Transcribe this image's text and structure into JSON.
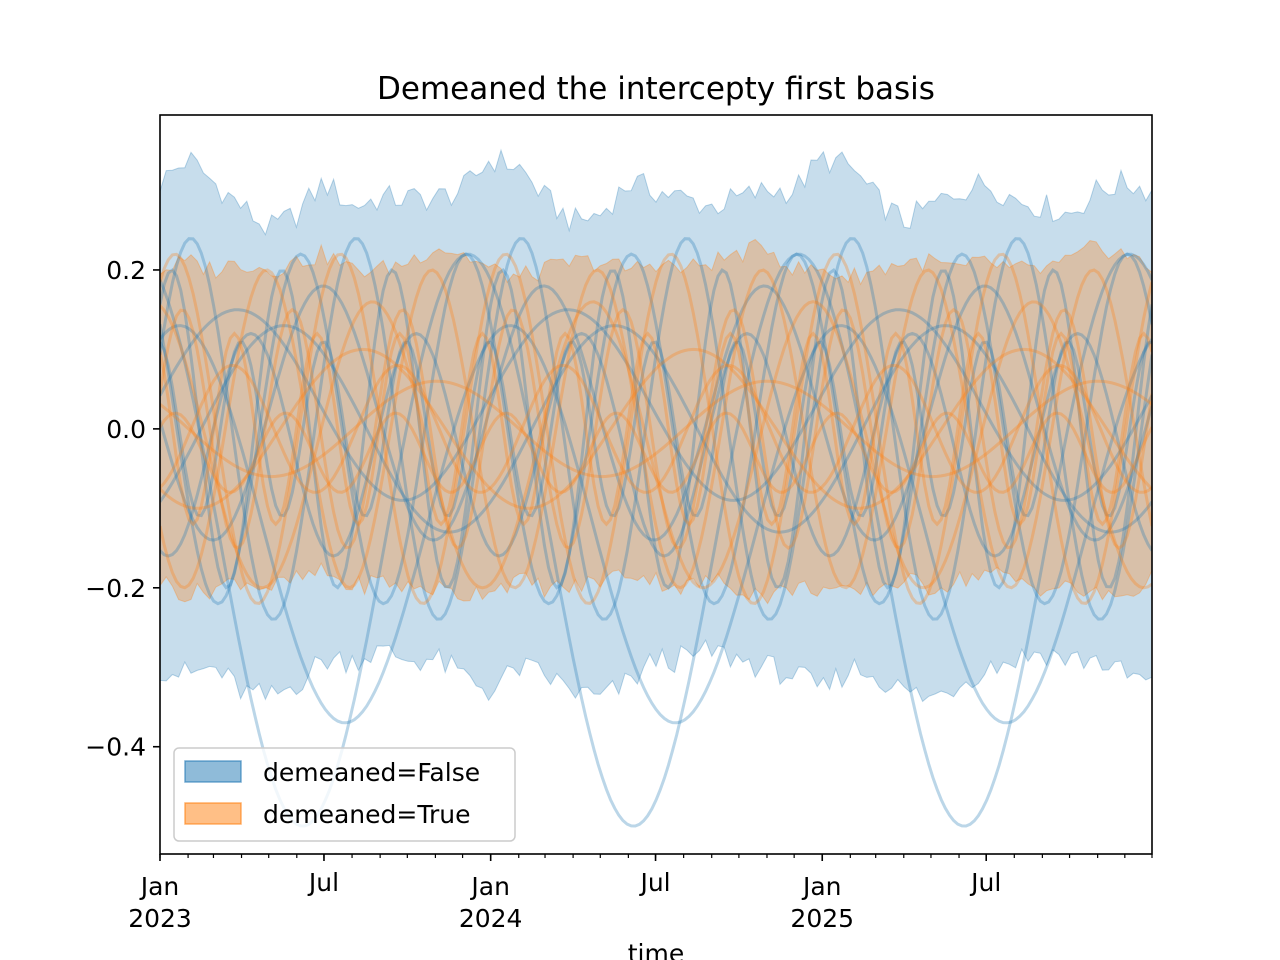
{
  "chart_data": {
    "type": "area",
    "title": "Demeaned the intercepty first basis",
    "xlabel": "time",
    "ylabel": "",
    "x_range": [
      "2023-01-01",
      "2025-12-31"
    ],
    "ylim": [
      -0.535,
      0.395
    ],
    "yticks": [
      -0.4,
      -0.2,
      0.0,
      0.2
    ],
    "ytick_labels": [
      "−0.4",
      "−0.2",
      "0.0",
      "0.2"
    ],
    "xticks": [
      {
        "date": "2023-01-01",
        "line1": "Jan",
        "line2": "2023"
      },
      {
        "date": "2023-07-01",
        "line1": "Jul",
        "line2": ""
      },
      {
        "date": "2024-01-01",
        "line1": "Jan",
        "line2": "2024"
      },
      {
        "date": "2024-07-01",
        "line1": "Jul",
        "line2": ""
      },
      {
        "date": "2025-01-01",
        "line1": "Jan",
        "line2": "2025"
      },
      {
        "date": "2025-07-01",
        "line1": "Jul",
        "line2": ""
      }
    ],
    "grid": false,
    "legend_position": "lower-left",
    "colors": {
      "false_series": "#1f77b4",
      "true_series": "#ff7f0e"
    },
    "series": [
      {
        "name": "demeaned=False",
        "band_upper": {
          "dates": [
            "2023-01-01",
            "2023-02-01",
            "2023-03-01",
            "2023-04-01",
            "2023-05-01",
            "2023-06-01",
            "2023-07-01",
            "2023-08-01",
            "2023-09-01",
            "2023-10-01",
            "2023-11-01",
            "2023-12-01",
            "2024-01-01",
            "2024-02-01",
            "2024-03-01",
            "2024-04-01",
            "2024-05-01",
            "2024-06-01",
            "2024-07-01",
            "2024-08-01",
            "2024-09-01",
            "2024-10-01",
            "2024-11-01",
            "2024-12-01",
            "2025-01-01",
            "2025-02-01",
            "2025-03-01",
            "2025-04-01",
            "2025-05-01",
            "2025-06-01",
            "2025-07-01",
            "2025-08-01",
            "2025-09-01",
            "2025-10-01",
            "2025-11-01",
            "2025-12-01",
            "2025-12-31"
          ],
          "values": [
            0.31,
            0.34,
            0.31,
            0.28,
            0.25,
            0.27,
            0.31,
            0.28,
            0.29,
            0.29,
            0.29,
            0.3,
            0.34,
            0.33,
            0.29,
            0.26,
            0.27,
            0.31,
            0.3,
            0.29,
            0.28,
            0.29,
            0.3,
            0.3,
            0.34,
            0.33,
            0.29,
            0.26,
            0.28,
            0.3,
            0.31,
            0.29,
            0.28,
            0.27,
            0.3,
            0.31,
            0.3
          ]
        },
        "band_lower": {
          "dates": [
            "2023-01-01",
            "2023-02-01",
            "2023-03-01",
            "2023-04-01",
            "2023-05-01",
            "2023-06-01",
            "2023-07-01",
            "2023-08-01",
            "2023-09-01",
            "2023-10-01",
            "2023-11-01",
            "2023-12-01",
            "2024-01-01",
            "2024-02-01",
            "2024-03-01",
            "2024-04-01",
            "2024-05-01",
            "2024-06-01",
            "2024-07-01",
            "2024-08-01",
            "2024-09-01",
            "2024-10-01",
            "2024-11-01",
            "2024-12-01",
            "2025-01-01",
            "2025-02-01",
            "2025-03-01",
            "2025-04-01",
            "2025-05-01",
            "2025-06-01",
            "2025-07-01",
            "2025-08-01",
            "2025-09-01",
            "2025-10-01",
            "2025-11-01",
            "2025-12-01",
            "2025-12-31"
          ],
          "values": [
            -0.3,
            -0.31,
            -0.3,
            -0.33,
            -0.34,
            -0.32,
            -0.29,
            -0.29,
            -0.28,
            -0.29,
            -0.29,
            -0.31,
            -0.33,
            -0.3,
            -0.31,
            -0.33,
            -0.34,
            -0.32,
            -0.29,
            -0.29,
            -0.28,
            -0.29,
            -0.3,
            -0.31,
            -0.33,
            -0.3,
            -0.31,
            -0.33,
            -0.34,
            -0.32,
            -0.3,
            -0.29,
            -0.28,
            -0.29,
            -0.29,
            -0.31,
            -0.32
          ]
        }
      },
      {
        "name": "demeaned=True",
        "band_upper": {
          "dates": [
            "2023-01-01",
            "2023-02-01",
            "2023-03-01",
            "2023-04-01",
            "2023-05-01",
            "2023-06-01",
            "2023-07-01",
            "2023-08-01",
            "2023-09-01",
            "2023-10-01",
            "2023-11-01",
            "2023-12-01",
            "2024-01-01",
            "2024-02-01",
            "2024-03-01",
            "2024-04-01",
            "2024-05-01",
            "2024-06-01",
            "2024-07-01",
            "2024-08-01",
            "2024-09-01",
            "2024-10-01",
            "2024-11-01",
            "2024-12-01",
            "2025-01-01",
            "2025-02-01",
            "2025-03-01",
            "2025-04-01",
            "2025-05-01",
            "2025-06-01",
            "2025-07-01",
            "2025-08-01",
            "2025-09-01",
            "2025-10-01",
            "2025-11-01",
            "2025-12-01",
            "2025-12-31"
          ],
          "values": [
            0.2,
            0.21,
            0.2,
            0.21,
            0.2,
            0.21,
            0.22,
            0.2,
            0.2,
            0.21,
            0.23,
            0.22,
            0.2,
            0.19,
            0.2,
            0.21,
            0.21,
            0.2,
            0.21,
            0.2,
            0.21,
            0.22,
            0.23,
            0.2,
            0.2,
            0.19,
            0.2,
            0.21,
            0.21,
            0.2,
            0.21,
            0.2,
            0.2,
            0.21,
            0.23,
            0.22,
            0.2
          ]
        },
        "band_lower": {
          "dates": [
            "2023-01-01",
            "2023-02-01",
            "2023-03-01",
            "2023-04-01",
            "2023-05-01",
            "2023-06-01",
            "2023-07-01",
            "2023-08-01",
            "2023-09-01",
            "2023-10-01",
            "2023-11-01",
            "2023-12-01",
            "2024-01-01",
            "2024-02-01",
            "2024-03-01",
            "2024-04-01",
            "2024-05-01",
            "2024-06-01",
            "2024-07-01",
            "2024-08-01",
            "2024-09-01",
            "2024-10-01",
            "2024-11-01",
            "2024-12-01",
            "2025-01-01",
            "2025-02-01",
            "2025-03-01",
            "2025-04-01",
            "2025-05-01",
            "2025-06-01",
            "2025-07-01",
            "2025-08-01",
            "2025-09-01",
            "2025-10-01",
            "2025-11-01",
            "2025-12-01",
            "2025-12-31"
          ],
          "values": [
            -0.19,
            -0.21,
            -0.2,
            -0.19,
            -0.2,
            -0.19,
            -0.18,
            -0.2,
            -0.19,
            -0.2,
            -0.2,
            -0.21,
            -0.2,
            -0.19,
            -0.2,
            -0.2,
            -0.19,
            -0.18,
            -0.19,
            -0.2,
            -0.19,
            -0.2,
            -0.21,
            -0.2,
            -0.2,
            -0.21,
            -0.2,
            -0.19,
            -0.2,
            -0.19,
            -0.18,
            -0.19,
            -0.2,
            -0.2,
            -0.21,
            -0.21,
            -0.19
          ]
        }
      }
    ],
    "sample_lines": [
      {
        "series": "demeaned=False",
        "amplitude": 0.24,
        "period_months": 6,
        "offset": 0.0,
        "phase": 0.4
      },
      {
        "series": "demeaned=False",
        "amplitude": 0.22,
        "period_months": 6,
        "offset": 0.0,
        "phase": 2.5
      },
      {
        "series": "demeaned=False",
        "amplitude": 0.25,
        "period_months": 12,
        "offset": -0.12,
        "phase": 1.2
      },
      {
        "series": "demeaned=False",
        "amplitude": 0.2,
        "period_months": 4,
        "offset": 0.0,
        "phase": 0.9
      },
      {
        "series": "demeaned=False",
        "amplitude": 0.16,
        "period_months": 8,
        "offset": 0.02,
        "phase": 3.2
      },
      {
        "series": "demeaned=False",
        "amplitude": 0.14,
        "period_months": 6,
        "offset": -0.02,
        "phase": 4.4
      },
      {
        "series": "demeaned=False",
        "amplitude": 0.13,
        "period_months": 12,
        "offset": 0.0,
        "phase": 5.5
      },
      {
        "series": "demeaned=False",
        "amplitude": 0.11,
        "period_months": 3,
        "offset": 0.0,
        "phase": 1.7
      },
      {
        "series": "demeaned=False",
        "amplitude": 0.36,
        "period_months": 12,
        "offset": -0.14,
        "phase": 2.0
      },
      {
        "series": "demeaned=False",
        "amplitude": 0.12,
        "period_months": 12,
        "offset": 0.03,
        "phase": 0.1
      },
      {
        "series": "demeaned=True",
        "amplitude": 0.22,
        "period_months": 6,
        "offset": 0.0,
        "phase": 1.0
      },
      {
        "series": "demeaned=True",
        "amplitude": 0.2,
        "period_months": 6,
        "offset": 0.0,
        "phase": 3.8
      },
      {
        "series": "demeaned=True",
        "amplitude": 0.15,
        "period_months": 4,
        "offset": 0.0,
        "phase": 0.3
      },
      {
        "series": "demeaned=True",
        "amplitude": 0.1,
        "period_months": 12,
        "offset": 0.0,
        "phase": 4.0
      },
      {
        "series": "demeaned=True",
        "amplitude": 0.08,
        "period_months": 6,
        "offset": 0.0,
        "phase": 5.1
      },
      {
        "series": "demeaned=True",
        "amplitude": 0.06,
        "period_months": 12,
        "offset": 0.0,
        "phase": 2.6
      },
      {
        "series": "demeaned=True",
        "amplitude": 0.18,
        "period_months": 8,
        "offset": -0.02,
        "phase": 1.8
      },
      {
        "series": "demeaned=True",
        "amplitude": 0.12,
        "period_months": 3,
        "offset": 0.0,
        "phase": 2.2
      },
      {
        "series": "demeaned=True",
        "amplitude": 0.05,
        "period_months": 4,
        "offset": -0.03,
        "phase": 0.7
      }
    ]
  },
  "legend": {
    "items": [
      {
        "label": "demeaned=False",
        "color": "#1f77b4"
      },
      {
        "label": "demeaned=True",
        "color": "#ff7f0e"
      }
    ]
  }
}
